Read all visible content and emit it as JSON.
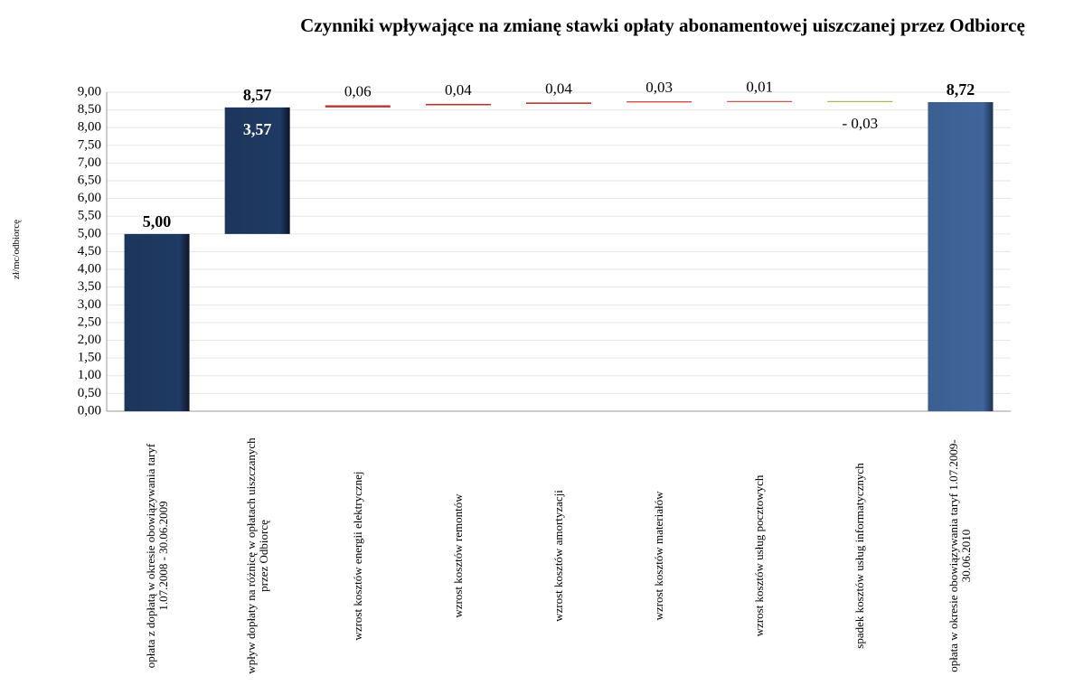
{
  "chart_data": {
    "type": "waterfall",
    "title": "Czynniki  wpływające na zmianę stawki opłaty abonamentowej uiszczanej przez Odbiorcę",
    "ylabel": "zł/mc/odbiorcę",
    "categories": [
      "opłata z dopłatą w okresie obowiązywania taryf 1.07.2008 - 30.06.2009",
      "wpływ dopłaty na różnicę w opłatach uiszczanych przez Odbiorcę",
      "wzrost kosztów energii elektrycznej",
      "wzrost kosztów remontów",
      "wzrost kosztów amortyzacji",
      "wzrost kosztów materiałów",
      "wzrost kosztów usług pocztowych",
      "spadek kosztów  usług informatycznych",
      "opłata w okresie obowiązywania taryf 1.07.2009-30.06.2010"
    ],
    "kinds": [
      "total",
      "delta",
      "delta",
      "delta",
      "delta",
      "delta",
      "delta",
      "delta",
      "total"
    ],
    "values": [
      5.0,
      3.57,
      0.06,
      0.04,
      0.04,
      0.03,
      0.01,
      -0.03,
      8.72
    ],
    "value_labels": [
      "5,00",
      "3,57",
      "0,06",
      "0,04",
      "0,04",
      "0,03",
      "0,01",
      "- 0,03",
      "8,72"
    ],
    "annotations": [
      "8,57"
    ],
    "colors": {
      "first_total": "#1c355c",
      "last_total": "#3b5f91",
      "large_delta": "#1c355c",
      "increase": "#c0302b",
      "decrease": "#9bbb59"
    },
    "ylim": [
      0,
      9
    ],
    "yticks": [
      {
        "value": 0,
        "label": "0,00"
      },
      {
        "value": 0.5,
        "label": "0,50"
      },
      {
        "value": 1,
        "label": "1,00"
      },
      {
        "value": 1.5,
        "label": "1,50"
      },
      {
        "value": 2,
        "label": "2,00"
      },
      {
        "value": 2.5,
        "label": "2,50"
      },
      {
        "value": 3,
        "label": "3,00"
      },
      {
        "value": 3.5,
        "label": "3,50"
      },
      {
        "value": 4,
        "label": "4,00"
      },
      {
        "value": 4.5,
        "label": "4,50"
      },
      {
        "value": 5,
        "label": "5,00"
      },
      {
        "value": 5.5,
        "label": "5,50"
      },
      {
        "value": 6,
        "label": "6,00"
      },
      {
        "value": 6.5,
        "label": "6,50"
      },
      {
        "value": 7,
        "label": "7,00"
      },
      {
        "value": 7.5,
        "label": "7,50"
      },
      {
        "value": 8,
        "label": "8,00"
      },
      {
        "value": 8.5,
        "label": "8,50"
      },
      {
        "value": 9,
        "label": "9,00"
      }
    ],
    "grid": true
  }
}
